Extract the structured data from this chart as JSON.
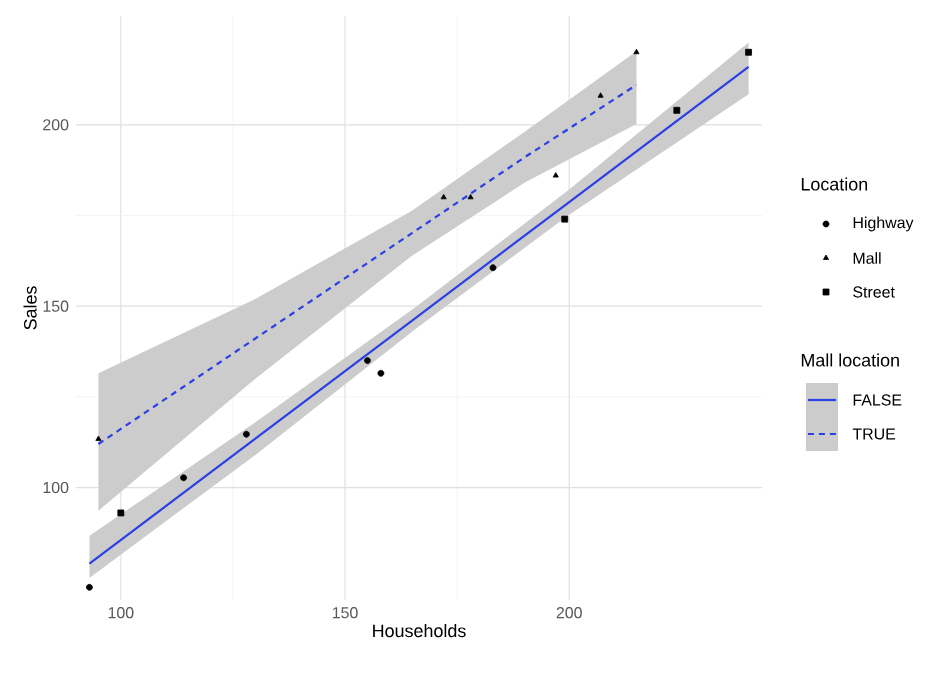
{
  "chart_data": {
    "type": "scatter",
    "xlabel": "Households",
    "ylabel": "Sales",
    "legend_title": [
      "Location",
      "Mall location"
    ],
    "xlim": [
      90,
      243
    ],
    "ylim": [
      69,
      230
    ],
    "xticks": [
      100,
      150,
      200
    ],
    "yticks": [
      100,
      150,
      200
    ],
    "grid": true,
    "legend": "right",
    "series": [
      {
        "name": "Highway",
        "marker": "circle",
        "color": "#000000",
        "x": [
          93,
          114,
          128,
          155,
          158,
          183
        ],
        "values": [
          72.5,
          102.7,
          114.7,
          135,
          131.5,
          160.6
        ]
      },
      {
        "name": "Mall",
        "marker": "triangle",
        "color": "#000000",
        "x": [
          95,
          172,
          178,
          197,
          207,
          215
        ],
        "values": [
          113.4,
          180,
          180,
          186,
          208,
          220
        ]
      },
      {
        "name": "Street",
        "marker": "square",
        "color": "#000000",
        "x": [
          100,
          199,
          224,
          240
        ],
        "values": [
          93,
          174,
          204,
          220
        ]
      },
      {
        "name": "FALSE",
        "type": "line",
        "line_style": "solid",
        "color": "#2a3fe6",
        "x": [
          93,
          130,
          166,
          200,
          240
        ],
        "values": [
          79,
          113.5,
          147,
          178.7,
          216
        ],
        "lower": [
          75.1,
          109,
          144,
          175.2,
          208.4
        ],
        "upper": [
          86.7,
          118,
          150,
          182.2,
          222.7
        ]
      },
      {
        "name": "TRUE",
        "type": "line",
        "line_style": "dashed",
        "color": "#2a3fe6",
        "x": [
          95,
          130,
          165,
          190,
          215
        ],
        "values": [
          112,
          141.1,
          170.2,
          191,
          211
        ],
        "lower": [
          93.6,
          130,
          164,
          184,
          200.2
        ],
        "upper": [
          131.5,
          152,
          176.4,
          198,
          220.3
        ]
      }
    ]
  }
}
